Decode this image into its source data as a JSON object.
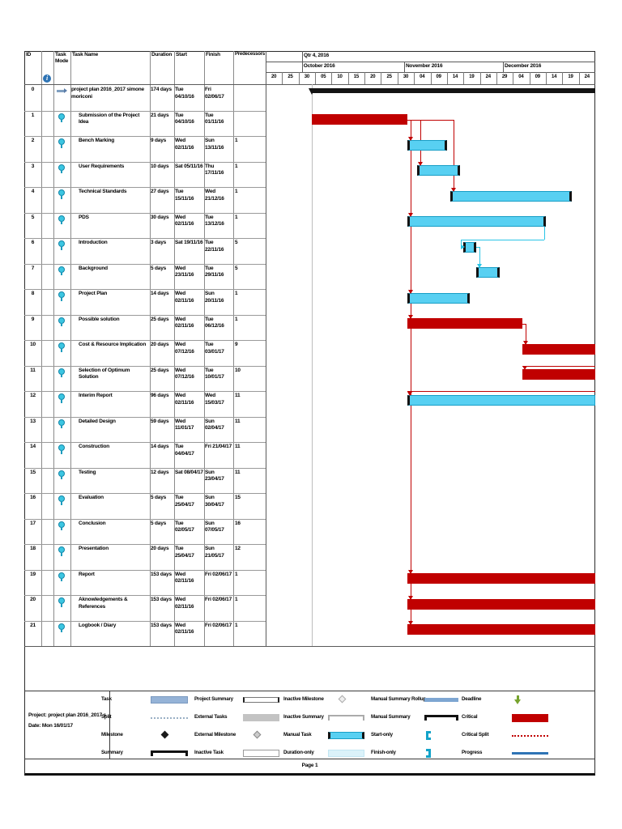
{
  "table": {
    "headers": {
      "id": "ID",
      "mode": "Task\nMode",
      "name": "Task Name",
      "duration": "Duration",
      "start": "Start",
      "finish": "Finish",
      "pred": "Predecessors"
    },
    "rows": [
      {
        "id": "0",
        "mode": "auto",
        "name": "project plan 2016_2017 simone moriconi",
        "duration": "174 days",
        "start": "Tue\n04/10/16",
        "finish": "Fri\n02/06/17",
        "pred": ""
      },
      {
        "id": "1",
        "mode": "pinned",
        "name": "Submission of the Project Idea",
        "duration": "21 days",
        "start": "Tue\n04/10/16",
        "finish": "Tue\n01/11/16",
        "pred": ""
      },
      {
        "id": "2",
        "mode": "pinned",
        "name": "Bench Marking",
        "duration": "9 days",
        "start": "Wed\n02/11/16",
        "finish": "Sun\n13/11/16",
        "pred": "1"
      },
      {
        "id": "3",
        "mode": "pinned",
        "name": "User Requirements",
        "duration": "10 days",
        "start": "Sat 05/11/16",
        "finish": "Thu\n17/11/16",
        "pred": "1"
      },
      {
        "id": "4",
        "mode": "pinned",
        "name": "Technical Standards",
        "duration": "27 days",
        "start": "Tue\n15/11/16",
        "finish": "Wed\n21/12/16",
        "pred": "1"
      },
      {
        "id": "5",
        "mode": "pinned",
        "name": "PDS",
        "duration": "30 days",
        "start": "Wed\n02/11/16",
        "finish": "Tue\n13/12/16",
        "pred": "1"
      },
      {
        "id": "6",
        "mode": "pinned",
        "name": "Introduction",
        "duration": "3 days",
        "start": "Sat 19/11/16",
        "finish": "Tue\n22/11/16",
        "pred": "5"
      },
      {
        "id": "7",
        "mode": "pinned",
        "name": "Background",
        "duration": "5 days",
        "start": "Wed\n23/11/16",
        "finish": "Tue\n29/11/16",
        "pred": "5"
      },
      {
        "id": "8",
        "mode": "pinned",
        "name": "Project Plan",
        "duration": "14 days",
        "start": "Wed\n02/11/16",
        "finish": "Sun\n20/11/16",
        "pred": "1"
      },
      {
        "id": "9",
        "mode": "pinned",
        "name": "Possible solution",
        "duration": "25 days",
        "start": "Wed\n02/11/16",
        "finish": "Tue\n06/12/16",
        "pred": "1"
      },
      {
        "id": "10",
        "mode": "pinned",
        "name": "Cost & Resource Implication",
        "duration": "20 days",
        "start": "Wed\n07/12/16",
        "finish": "Tue\n03/01/17",
        "pred": "9"
      },
      {
        "id": "11",
        "mode": "pinned",
        "name": "Selection of Optimum Solution",
        "duration": "25 days",
        "start": "Wed\n07/12/16",
        "finish": "Tue\n10/01/17",
        "pred": "10"
      },
      {
        "id": "12",
        "mode": "pinned",
        "name": "Interim Report",
        "duration": "96 days",
        "start": "Wed\n02/11/16",
        "finish": "Wed\n15/03/17",
        "pred": "11"
      },
      {
        "id": "13",
        "mode": "pinned",
        "name": "Detailed Design",
        "duration": "59 days",
        "start": "Wed\n11/01/17",
        "finish": "Sun\n02/04/17",
        "pred": "11"
      },
      {
        "id": "14",
        "mode": "pinned",
        "name": "Construction",
        "duration": "14 days",
        "start": "Tue\n04/04/17",
        "finish": "Fri 21/04/17",
        "pred": "11"
      },
      {
        "id": "15",
        "mode": "pinned",
        "name": "Testing",
        "duration": "12 days",
        "start": "Sat 08/04/17",
        "finish": "Sun\n23/04/17",
        "pred": "11"
      },
      {
        "id": "16",
        "mode": "pinned",
        "name": "Evaluation",
        "duration": "5 days",
        "start": "Tue\n25/04/17",
        "finish": "Sun\n30/04/17",
        "pred": "15"
      },
      {
        "id": "17",
        "mode": "pinned",
        "name": "Conclusion",
        "duration": "5 days",
        "start": "Tue\n02/05/17",
        "finish": "Sun\n07/05/17",
        "pred": "16"
      },
      {
        "id": "18",
        "mode": "pinned",
        "name": "Presentation",
        "duration": "20 days",
        "start": "Tue\n25/04/17",
        "finish": "Sun\n21/05/17",
        "pred": "12"
      },
      {
        "id": "19",
        "mode": "pinned",
        "name": "Report",
        "duration": "153 days",
        "start": "Wed\n02/11/16",
        "finish": "Fri 02/06/17",
        "pred": "1"
      },
      {
        "id": "20",
        "mode": "pinned",
        "name": "Aknowledgements & References",
        "duration": "153 days",
        "start": "Wed\n02/11/16",
        "finish": "Fri 02/06/17",
        "pred": "1"
      },
      {
        "id": "21",
        "mode": "pinned",
        "name": "Logbook / Diary",
        "duration": "153 days",
        "start": "Wed\n02/11/16",
        "finish": "Fri 02/06/17",
        "pred": "1"
      }
    ]
  },
  "timeline": {
    "quarter": {
      "label": "Qtr 4, 2016",
      "day": 11
    },
    "months": [
      {
        "label": "October 2016",
        "day": 11
      },
      {
        "label": "November 2016",
        "day": 42
      },
      {
        "label": "December 2016",
        "day": 72
      }
    ],
    "ticks": [
      "20",
      "25",
      "30",
      "05",
      "10",
      "15",
      "20",
      "25",
      "30",
      "04",
      "09",
      "14",
      "19",
      "24",
      "29",
      "04",
      "09",
      "14",
      "19",
      "24"
    ]
  },
  "gantt": {
    "project_start_day": 14,
    "bars": [
      {
        "row": 0,
        "s": 14,
        "e": 256,
        "type": "summary",
        "cut": true
      },
      {
        "row": 1,
        "s": 14,
        "e": 43,
        "type": "critical",
        "cut": false
      },
      {
        "row": 2,
        "s": 43,
        "e": 55,
        "type": "manual",
        "cut": false
      },
      {
        "row": 3,
        "s": 46,
        "e": 59,
        "type": "manual",
        "cut": false
      },
      {
        "row": 4,
        "s": 56,
        "e": 93,
        "type": "manual",
        "cut": false
      },
      {
        "row": 5,
        "s": 43,
        "e": 85,
        "type": "manual",
        "cut": false
      },
      {
        "row": 6,
        "s": 60,
        "e": 64,
        "type": "manual",
        "cut": false
      },
      {
        "row": 7,
        "s": 64,
        "e": 71,
        "type": "manual",
        "cut": false
      },
      {
        "row": 8,
        "s": 43,
        "e": 62,
        "type": "manual",
        "cut": false
      },
      {
        "row": 9,
        "s": 43,
        "e": 78,
        "type": "critical",
        "cut": false
      },
      {
        "row": 10,
        "s": 78,
        "e": 105,
        "type": "critical",
        "cut": true
      },
      {
        "row": 11,
        "s": 78,
        "e": 112,
        "type": "critical",
        "cut": true
      },
      {
        "row": 12,
        "s": 43,
        "e": 176,
        "type": "manual",
        "cut": true
      },
      {
        "row": 19,
        "s": 43,
        "e": 255,
        "type": "critical",
        "cut": true
      },
      {
        "row": 20,
        "s": 43,
        "e": 255,
        "type": "critical",
        "cut": true
      },
      {
        "row": 21,
        "s": 43,
        "e": 255,
        "type": "critical",
        "cut": true
      }
    ],
    "links": [
      {
        "from": 1,
        "to": 2
      },
      {
        "from": 1,
        "to": 3
      },
      {
        "from": 1,
        "to": 4
      },
      {
        "from": 1,
        "to": 5
      },
      {
        "from": 5,
        "to": 6
      },
      {
        "from": 6,
        "to": 7
      },
      {
        "from": 1,
        "to": 8
      },
      {
        "from": 1,
        "to": 9
      },
      {
        "from": 9,
        "to": 10
      },
      {
        "from": 10,
        "to": 11
      },
      {
        "from": 11,
        "to": 12
      },
      {
        "from": 1,
        "to": 19
      },
      {
        "from": 1,
        "to": 20
      },
      {
        "from": 1,
        "to": 21
      }
    ]
  },
  "legend": {
    "info": {
      "line1": "Project: project plan 2016_2017 s",
      "line2": "Date: Mon 16/01/17"
    },
    "columns": [
      [
        {
          "label": "Task",
          "sym": "bar-task"
        },
        {
          "label": "Split",
          "sym": "split"
        },
        {
          "label": "Milestone",
          "sym": "milestone"
        },
        {
          "label": "Summary",
          "sym": "summary"
        }
      ],
      [
        {
          "label": "Project Summary",
          "sym": "project-summary"
        },
        {
          "label": "External Tasks",
          "sym": "bar-external"
        },
        {
          "label": "External Milestone",
          "sym": "milestone-external"
        },
        {
          "label": "Inactive Task",
          "sym": "bar-inactive"
        }
      ],
      [
        {
          "label": "Inactive Milestone",
          "sym": "milestone-inactive"
        },
        {
          "label": "Inactive Summary",
          "sym": "summary-inactive"
        },
        {
          "label": "Manual Task",
          "sym": "bar-manual"
        },
        {
          "label": "Duration-only",
          "sym": "bar-duration"
        }
      ],
      [
        {
          "label": "Manual Summary Rollup",
          "sym": "bar-rollup"
        },
        {
          "label": "Manual Summary",
          "sym": "summary-manual"
        },
        {
          "label": "Start-only",
          "sym": "bracket-start"
        },
        {
          "label": "Finish-only",
          "sym": "bracket-finish"
        }
      ],
      [
        {
          "label": "Deadline",
          "sym": "deadline"
        },
        {
          "label": "Critical",
          "sym": "bar-critical"
        },
        {
          "label": "Critical Split",
          "sym": "split-critical"
        },
        {
          "label": "Progress",
          "sym": "progress"
        }
      ]
    ]
  },
  "colors": {
    "critical": "#c00000",
    "manual_task": "#58d0f2",
    "task": "#95b3d7",
    "progress": "#2e74b5",
    "deadline": "#76a32d",
    "manual_link": "#29c5e6"
  },
  "footer": {
    "page": "Page 1"
  }
}
